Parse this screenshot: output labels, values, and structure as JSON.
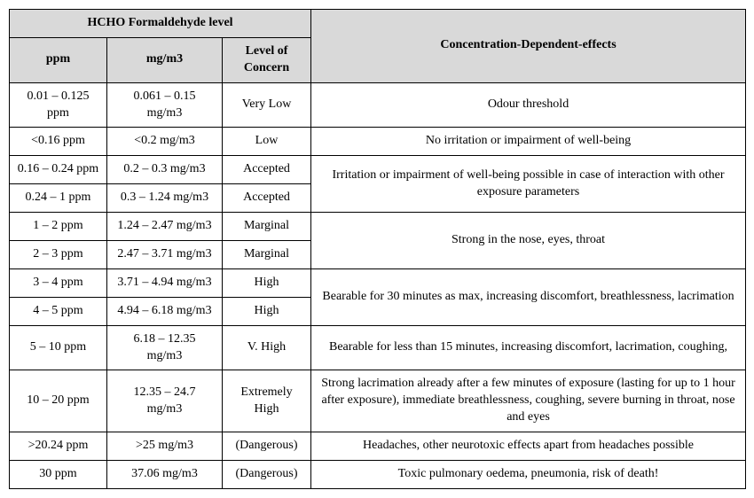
{
  "table": {
    "header": {
      "hcho_group": "HCHO Formaldehyde level",
      "effects": "Concentration-Dependent-effects",
      "ppm": "ppm",
      "mgm3": "mg/m3",
      "level": "Level of Concern"
    },
    "rows": [
      {
        "ppm": "0.01 – 0.125 ppm",
        "mgm3": "0.061 – 0.15 mg/m3",
        "level": "Very Low",
        "effect": "Odour threshold"
      },
      {
        "ppm": "<0.16 ppm",
        "mgm3": "<0.2 mg/m3",
        "level": "Low",
        "effect": "No irritation or impairment of well-being"
      },
      {
        "ppm": "0.16 – 0.24 ppm",
        "mgm3": "0.2 – 0.3 mg/m3",
        "level": "Accepted",
        "effect": "Irritation or impairment of well-being possible in case of interaction with other exposure parameters"
      },
      {
        "ppm": "0.24 – 1 ppm",
        "mgm3": "0.3 – 1.24 mg/m3",
        "level": "Accepted"
      },
      {
        "ppm": "1 – 2 ppm",
        "mgm3": "1.24 – 2.47 mg/m3",
        "level": "Marginal",
        "effect": "Strong in the nose, eyes, throat"
      },
      {
        "ppm": "2 – 3 ppm",
        "mgm3": "2.47 – 3.71 mg/m3",
        "level": "Marginal"
      },
      {
        "ppm": "3 – 4 ppm",
        "mgm3": "3.71 – 4.94 mg/m3",
        "level": "High",
        "effect": "Bearable for 30 minutes as max, increasing discomfort, breathlessness, lacrimation"
      },
      {
        "ppm": "4 – 5 ppm",
        "mgm3": "4.94 – 6.18 mg/m3",
        "level": "High"
      },
      {
        "ppm": "5 – 10 ppm",
        "mgm3": "6.18 – 12.35 mg/m3",
        "level": "V. High",
        "effect": "Bearable for less than 15 minutes, increasing discomfort, lacrimation, coughing,"
      },
      {
        "ppm": "10 – 20 ppm",
        "mgm3": "12.35 – 24.7 mg/m3",
        "level": "Extremely High",
        "effect": "Strong lacrimation already after a few minutes of exposure (lasting for up to 1 hour after exposure), immediate breathlessness, coughing, severe burning in throat, nose and eyes"
      },
      {
        "ppm": ">20.24 ppm",
        "mgm3": ">25 mg/m3",
        "level": "(Dangerous)",
        "effect": "Headaches, other neurotoxic effects apart from headaches possible"
      },
      {
        "ppm": "30 ppm",
        "mgm3": "37.06 mg/m3",
        "level": "(Dangerous)",
        "effect": "Toxic pulmonary oedema, pneumonia, risk of death!"
      }
    ],
    "colors": {
      "header_bg": "#d9d9d9",
      "border": "#000000",
      "text": "#000000",
      "body_bg": "#ffffff"
    },
    "font": {
      "family": "Times New Roman",
      "size_pt": 11
    }
  }
}
